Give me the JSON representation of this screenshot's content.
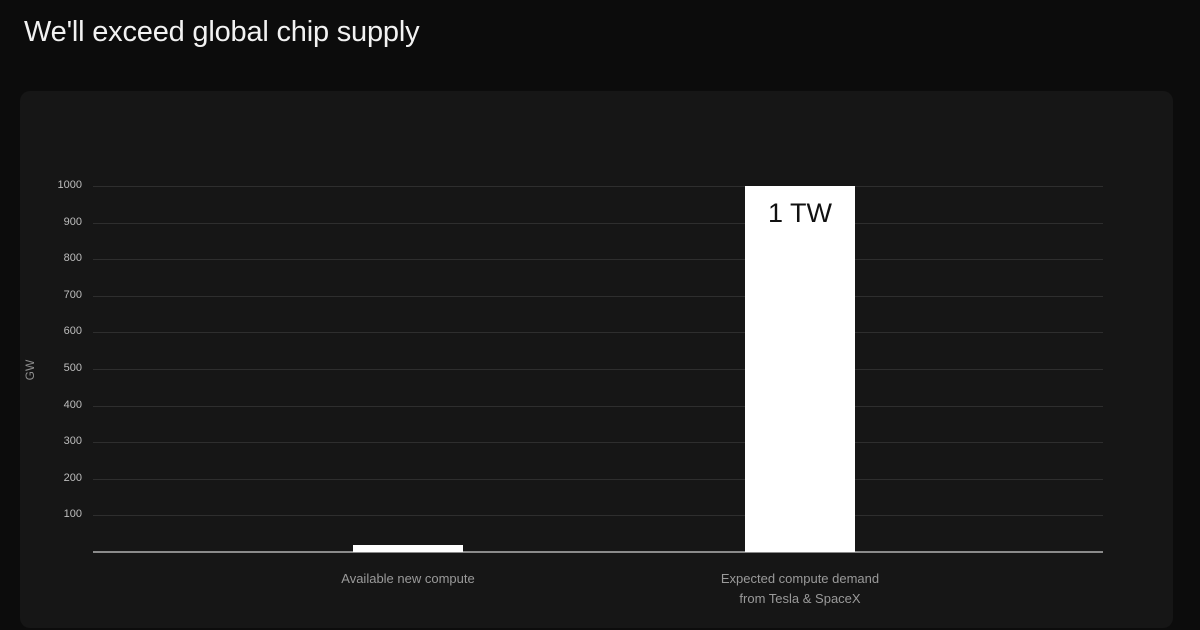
{
  "title": "We'll exceed global chip supply",
  "chart_data": {
    "type": "bar",
    "title": "We'll exceed global chip supply",
    "categories": [
      "Available new compute",
      "Expected compute demand from Tesla & SpaceX"
    ],
    "category_lines": [
      [
        "Available new compute"
      ],
      [
        "Expected compute demand",
        "from Tesla & SpaceX"
      ]
    ],
    "values": [
      20,
      1000
    ],
    "data_labels": [
      "",
      "1 TW"
    ],
    "xlabel": "",
    "ylabel": "GW",
    "ylim": [
      0,
      1000
    ],
    "yticks": [
      100,
      200,
      300,
      400,
      500,
      600,
      700,
      800,
      900,
      1000
    ],
    "grid": true,
    "legend": null,
    "colors": {
      "bar": "#ffffff",
      "background": "#161616",
      "page": "#0c0c0c"
    }
  }
}
